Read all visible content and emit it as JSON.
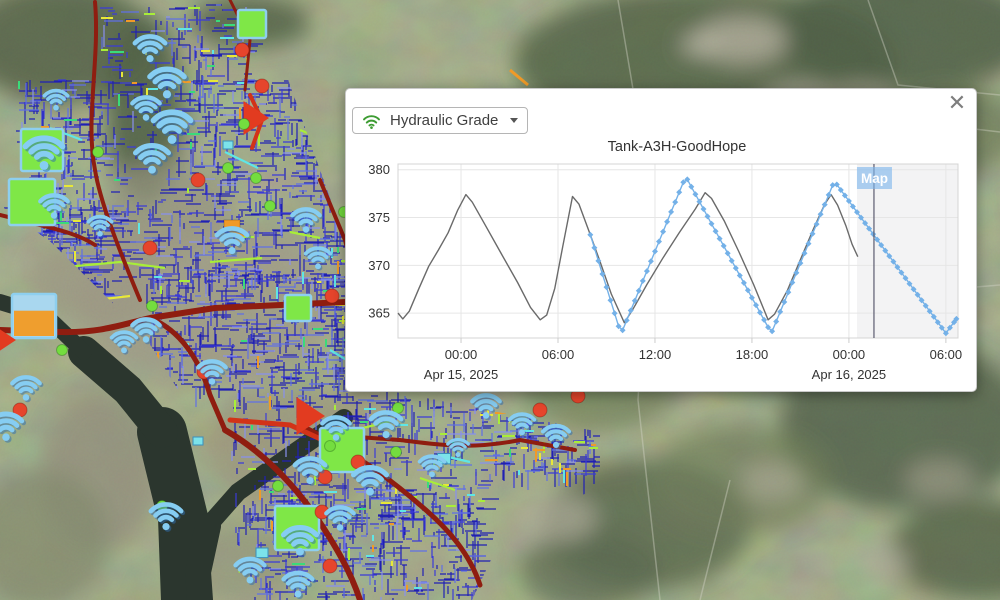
{
  "panel": {
    "dropdown": {
      "label": "Hydraulic Grade",
      "icon": "wifi-icon",
      "icon_color": "#3d9c32"
    },
    "close_icon": "✕",
    "map_tooltip": "Map"
  },
  "chart_data": {
    "type": "line",
    "title": "Tank-A3H-GoodHope",
    "x_axis": {
      "range_hours": [
        -3.9,
        30.75
      ],
      "tick_hours": [
        0,
        6,
        12,
        18,
        24,
        30
      ],
      "tick_labels": [
        "00:00",
        "06:00",
        "12:00",
        "18:00",
        "00:00",
        "06:00"
      ],
      "date_labels": [
        {
          "hour": 0,
          "label": "Apr 15, 2025"
        },
        {
          "hour": 24,
          "label": "Apr 16, 2025"
        }
      ]
    },
    "y_axis": {
      "ticks": [
        365,
        370,
        375,
        380
      ],
      "range": [
        362.4,
        380.6
      ]
    },
    "grid": true,
    "plot_band": {
      "from_hour": 24.5,
      "color": "rgba(120,120,130,0.09)"
    },
    "cursor_hour": 25.55,
    "series": [
      {
        "name": "observed",
        "color": "#6a6a6a",
        "style": "solid",
        "points": [
          [
            -3.9,
            365.0
          ],
          [
            -3.6,
            364.4
          ],
          [
            -3.2,
            365.2
          ],
          [
            -2.6,
            367.6
          ],
          [
            -2.0,
            369.9
          ],
          [
            -1.4,
            371.6
          ],
          [
            -0.8,
            373.4
          ],
          [
            -0.2,
            375.8
          ],
          [
            0.3,
            377.4
          ],
          [
            0.7,
            376.6
          ],
          [
            1.5,
            374.2
          ],
          [
            2.5,
            371.2
          ],
          [
            3.5,
            368.2
          ],
          [
            4.3,
            365.6
          ],
          [
            4.9,
            364.3
          ],
          [
            5.3,
            364.8
          ],
          [
            5.8,
            367.6
          ],
          [
            6.3,
            372.0
          ],
          [
            6.9,
            377.2
          ],
          [
            7.3,
            376.4
          ],
          [
            8.0,
            373.2
          ],
          [
            8.6,
            370.4
          ],
          [
            9.3,
            367.0
          ],
          [
            10.1,
            364.0
          ],
          [
            10.6,
            365.3
          ],
          [
            11.5,
            368.0
          ],
          [
            12.5,
            370.8
          ],
          [
            13.5,
            373.4
          ],
          [
            14.5,
            375.9
          ],
          [
            15.1,
            377.6
          ],
          [
            15.5,
            377.0
          ],
          [
            16.3,
            374.6
          ],
          [
            17.2,
            371.4
          ],
          [
            18.1,
            368.0
          ],
          [
            19.0,
            364.3
          ],
          [
            19.4,
            364.9
          ],
          [
            20.2,
            367.4
          ],
          [
            21.0,
            370.6
          ],
          [
            21.8,
            373.8
          ],
          [
            22.5,
            376.4
          ],
          [
            22.9,
            377.4
          ],
          [
            23.3,
            376.3
          ],
          [
            23.8,
            374.2
          ],
          [
            24.2,
            372.2
          ],
          [
            24.55,
            370.9
          ]
        ]
      },
      {
        "name": "forecast",
        "color": "#74b1e8",
        "style": "marker-line",
        "marker": "diamond",
        "marker_interval_hours": 0.25,
        "points": [
          [
            8.0,
            373.2
          ],
          [
            9.9,
            362.8
          ],
          [
            13.9,
            379.3
          ],
          [
            19.2,
            362.9
          ],
          [
            23.1,
            378.8
          ],
          [
            30.0,
            362.9
          ],
          [
            30.65,
            364.4
          ]
        ]
      }
    ]
  },
  "map": {
    "type": "satellite-network",
    "network_colors": {
      "pipes_blue": "#2020b4",
      "mains_dark_red": "#8f1d10",
      "highlight_red": "#d23318",
      "green_line": "#a8ee38",
      "cyan_line": "#5fe6e6",
      "yellow_line": "#e8e838",
      "orange_line": "#f09a28"
    },
    "markers": {
      "wifi_sensors": [
        [
          150,
          46,
          44
        ],
        [
          167,
          80,
          50
        ],
        [
          146,
          106,
          40
        ],
        [
          172,
          124,
          54
        ],
        [
          152,
          156,
          48
        ],
        [
          56,
          98,
          34
        ],
        [
          44,
          150,
          54
        ],
        [
          54,
          204,
          40
        ],
        [
          100,
          224,
          34
        ],
        [
          232,
          238,
          44
        ],
        [
          306,
          218,
          40
        ],
        [
          318,
          256,
          36
        ],
        [
          146,
          328,
          40
        ],
        [
          124,
          340,
          36
        ],
        [
          212,
          370,
          40
        ],
        [
          26,
          386,
          40
        ],
        [
          6,
          424,
          46
        ],
        [
          336,
          426,
          40
        ],
        [
          386,
          422,
          44
        ],
        [
          486,
          404,
          40
        ],
        [
          522,
          422,
          36
        ],
        [
          556,
          434,
          38
        ],
        [
          310,
          468,
          44
        ],
        [
          370,
          478,
          48
        ],
        [
          432,
          464,
          36
        ],
        [
          458,
          446,
          30
        ],
        [
          166,
          514,
          44
        ],
        [
          300,
          538,
          48
        ],
        [
          340,
          516,
          40
        ],
        [
          250,
          568,
          42
        ],
        [
          298,
          582,
          42
        ]
      ],
      "tanks_green": [
        [
          252,
          24,
          28
        ],
        [
          42,
          150,
          42
        ],
        [
          32,
          202,
          46
        ],
        [
          298,
          308,
          26
        ],
        [
          342,
          450,
          44
        ],
        [
          297,
          528,
          44
        ]
      ],
      "tank_orange": [
        [
          34,
          316,
          44
        ]
      ],
      "orange_boxes": [
        [
          232,
          228,
          16
        ]
      ],
      "valves_red_circle": [
        [
          242,
          50
        ],
        [
          262,
          86
        ],
        [
          198,
          180
        ],
        [
          332,
          296
        ],
        [
          204,
          372
        ],
        [
          20,
          410
        ],
        [
          358,
          462
        ],
        [
          325,
          477
        ],
        [
          322,
          512
        ],
        [
          540,
          410
        ],
        [
          578,
          396
        ],
        [
          330,
          566
        ],
        [
          150,
          248
        ]
      ],
      "nodes_green_circle": [
        [
          244,
          124
        ],
        [
          98,
          152
        ],
        [
          270,
          206
        ],
        [
          152,
          306
        ],
        [
          344,
          212
        ],
        [
          396,
          452
        ],
        [
          278,
          486
        ],
        [
          162,
          506
        ],
        [
          330,
          446
        ],
        [
          256,
          178
        ],
        [
          62,
          350
        ],
        [
          228,
          168
        ],
        [
          398,
          408
        ]
      ],
      "pumps_red_triangle": [
        [
          252,
          118,
          17
        ],
        [
          306,
          416,
          19
        ],
        [
          4,
          340,
          12
        ]
      ],
      "hydrants_cyan_box": [
        [
          444,
          460,
          13
        ],
        [
          228,
          146,
          10
        ],
        [
          262,
          554,
          12
        ],
        [
          198,
          442,
          10
        ]
      ]
    }
  }
}
